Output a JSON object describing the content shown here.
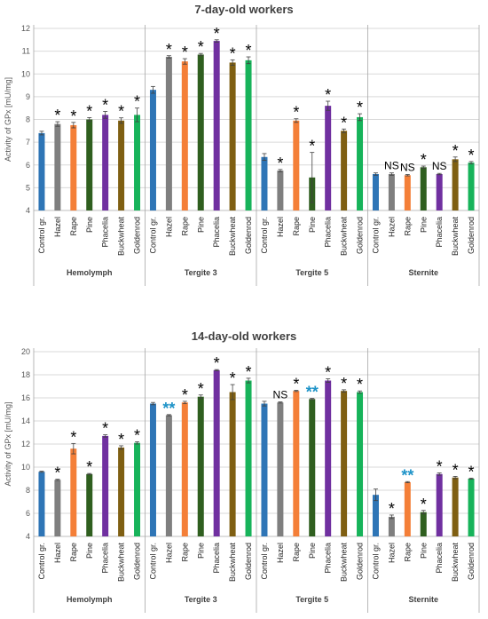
{
  "chart_data": [
    {
      "type": "bar",
      "title": "7-day-old workers",
      "ylabel": "Activity of GPx [mU/mg]",
      "xlabel": "",
      "ylim": [
        4,
        12
      ],
      "yticks": [
        4,
        5,
        6,
        7,
        8,
        9,
        10,
        11,
        12
      ],
      "grid": true,
      "groups": [
        {
          "name": "Hemolymph",
          "categories": [
            "Control gr.",
            "Hazel",
            "Rape",
            "Pine",
            "Phacelia",
            "Buckwheat",
            "Goldenrod"
          ],
          "values": [
            7.4,
            7.8,
            7.75,
            8.0,
            8.2,
            7.95,
            8.2
          ],
          "errors": [
            0.08,
            0.1,
            0.12,
            0.08,
            0.15,
            0.12,
            0.3
          ],
          "annotations": [
            "",
            "*",
            "*",
            "*",
            "*",
            "*",
            "*"
          ]
        },
        {
          "name": "Tergite 3",
          "categories": [
            "Control gr.",
            "Hazel",
            "Rape",
            "Pine",
            "Phacelia",
            "Buckwheat",
            "Goldenrod"
          ],
          "values": [
            9.3,
            10.75,
            10.55,
            10.85,
            11.45,
            10.5,
            10.6
          ],
          "errors": [
            0.15,
            0.05,
            0.12,
            0.05,
            0.05,
            0.12,
            0.15
          ],
          "annotations": [
            "",
            "*",
            "*",
            "*",
            "*",
            "*",
            "*"
          ]
        },
        {
          "name": "Tergite 5",
          "categories": [
            "Control gr.",
            "Hazel",
            "Rape",
            "Pine",
            "Phacelia",
            "Buckwheat",
            "Goldenrod"
          ],
          "values": [
            6.35,
            5.75,
            7.95,
            5.45,
            8.6,
            7.5,
            8.1
          ],
          "errors": [
            0.15,
            0.05,
            0.08,
            1.1,
            0.2,
            0.08,
            0.15
          ],
          "annotations": [
            "",
            "*",
            "*",
            "*",
            "*",
            "*",
            "*"
          ]
        },
        {
          "name": "Sternite",
          "categories": [
            "Control gr.",
            "Hazel",
            "Rape",
            "Pine",
            "Phacelia",
            "Buckwheat",
            "Goldenrod"
          ],
          "values": [
            5.6,
            5.6,
            5.55,
            5.9,
            5.6,
            6.25,
            6.1
          ],
          "errors": [
            0.05,
            0.05,
            0.03,
            0.05,
            0.03,
            0.1,
            0.05
          ],
          "annotations": [
            "",
            "NS",
            "NS",
            "*",
            "NS",
            "*",
            "*"
          ]
        }
      ]
    },
    {
      "type": "bar",
      "title": "14-day-old workers",
      "ylabel": "Activity of GPx [mU/mg]",
      "xlabel": "",
      "ylim": [
        4,
        20
      ],
      "yticks": [
        4,
        6,
        8,
        10,
        12,
        14,
        16,
        18,
        20
      ],
      "grid": true,
      "groups": [
        {
          "name": "Hemolymph",
          "categories": [
            "Control gr.",
            "Hazel",
            "Rape",
            "Pine",
            "Phacelia",
            "Buckwheat",
            "Goldenrod"
          ],
          "values": [
            9.6,
            8.9,
            11.6,
            9.4,
            12.7,
            11.7,
            12.1
          ],
          "errors": [
            0.05,
            0.05,
            0.45,
            0.05,
            0.1,
            0.15,
            0.1
          ],
          "annotations": [
            "",
            "*",
            "*",
            "*",
            "*",
            "*",
            "*"
          ]
        },
        {
          "name": "Tergite 3",
          "categories": [
            "Control gr.",
            "Hazel",
            "Rape",
            "Pine",
            "Phacelia",
            "Buckwheat",
            "Goldenrod"
          ],
          "values": [
            15.5,
            14.5,
            15.6,
            16.1,
            18.4,
            16.5,
            17.5
          ],
          "errors": [
            0.1,
            0.05,
            0.1,
            0.15,
            0.05,
            0.65,
            0.2
          ],
          "annotations": [
            "",
            "**",
            "*",
            "*",
            "*",
            "*",
            "*"
          ]
        },
        {
          "name": "Tergite 5",
          "categories": [
            "Control gr.",
            "Hazel",
            "Rape",
            "Pine",
            "Phacelia",
            "Buckwheat",
            "Goldenrod"
          ],
          "values": [
            15.5,
            15.6,
            16.6,
            15.9,
            17.5,
            16.6,
            16.5
          ],
          "errors": [
            0.2,
            0.05,
            0.05,
            0.05,
            0.15,
            0.1,
            0.1
          ],
          "annotations": [
            "",
            "NS",
            "*",
            "**",
            "*",
            "*",
            "*"
          ]
        },
        {
          "name": "Sternite",
          "categories": [
            "Control gr.",
            "Hazel",
            "Rape",
            "Pine",
            "Phacelia",
            "Buckwheat",
            "Goldenrod"
          ],
          "values": [
            7.6,
            5.7,
            8.7,
            6.1,
            9.4,
            9.1,
            9.0
          ],
          "errors": [
            0.5,
            0.15,
            0.05,
            0.15,
            0.1,
            0.1,
            0.05
          ],
          "annotations": [
            "",
            "*",
            "**",
            "*",
            "*",
            "*",
            "*"
          ]
        }
      ]
    }
  ],
  "colors": {
    "Control gr.": "#2e75b6",
    "Hazel": "#7f7f7f",
    "Rape": "#f47f38",
    "Pine": "#2f5f1f",
    "Phacelia": "#7030a0",
    "Buckwheat": "#7f5f12",
    "Goldenrod": "#17b35a",
    "annotation": "#000000",
    "annotation_alt": "#1e93c8",
    "grid": "#d9d9d9",
    "axis_text": "#595959"
  }
}
